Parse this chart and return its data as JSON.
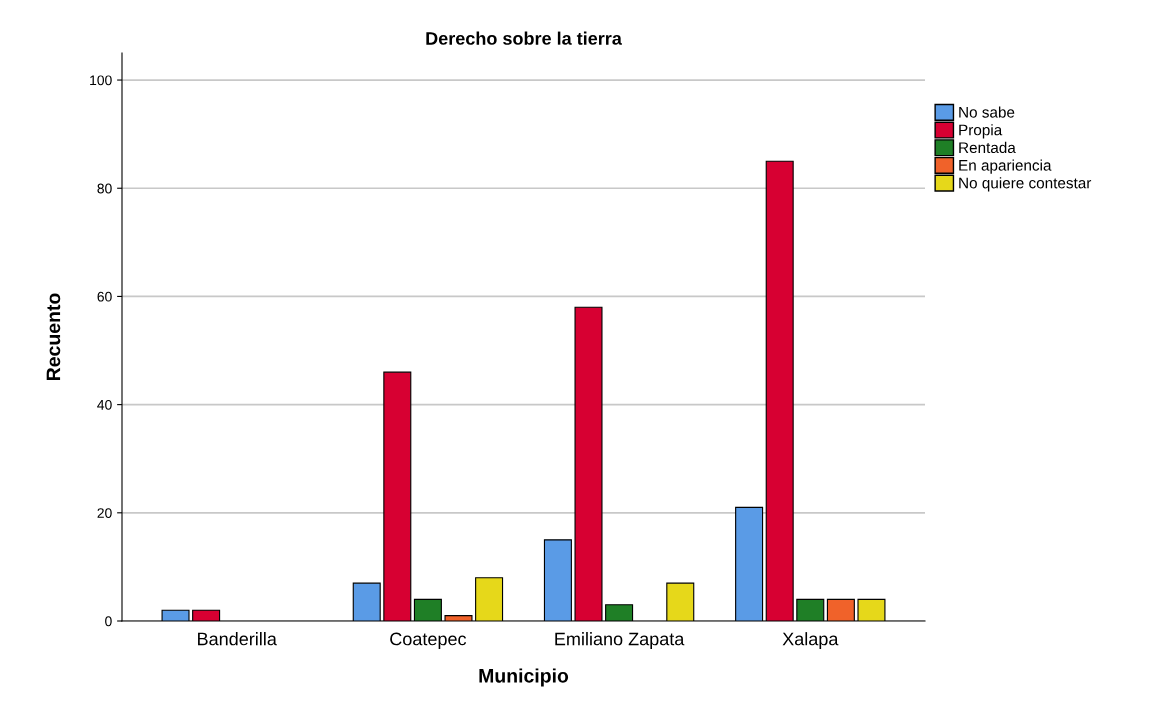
{
  "chart_data": {
    "type": "bar",
    "title": "Derecho sobre la tierra",
    "xlabel": "Municipio",
    "ylabel": "Recuento",
    "categories": [
      "Banderilla",
      "Coatepec",
      "Emiliano Zapata",
      "Xalapa"
    ],
    "series": [
      {
        "name": "No sabe",
        "color": "#5a9be6",
        "values": [
          2,
          7,
          15,
          21
        ]
      },
      {
        "name": "Propia",
        "color": "#d70032",
        "values": [
          2,
          46,
          58,
          85
        ]
      },
      {
        "name": "Rentada",
        "color": "#1f7f26",
        "values": [
          null,
          4,
          3,
          4
        ]
      },
      {
        "name": "En apariencia",
        "color": "#f0622a",
        "values": [
          null,
          1,
          null,
          4
        ]
      },
      {
        "name": "No quiere contestar",
        "color": "#e6d81a",
        "values": [
          null,
          8,
          7,
          4
        ]
      }
    ],
    "ylim": [
      0,
      105
    ],
    "yticks": [
      0,
      20,
      40,
      60,
      80,
      100
    ],
    "grid": "y",
    "legend": "top right"
  }
}
